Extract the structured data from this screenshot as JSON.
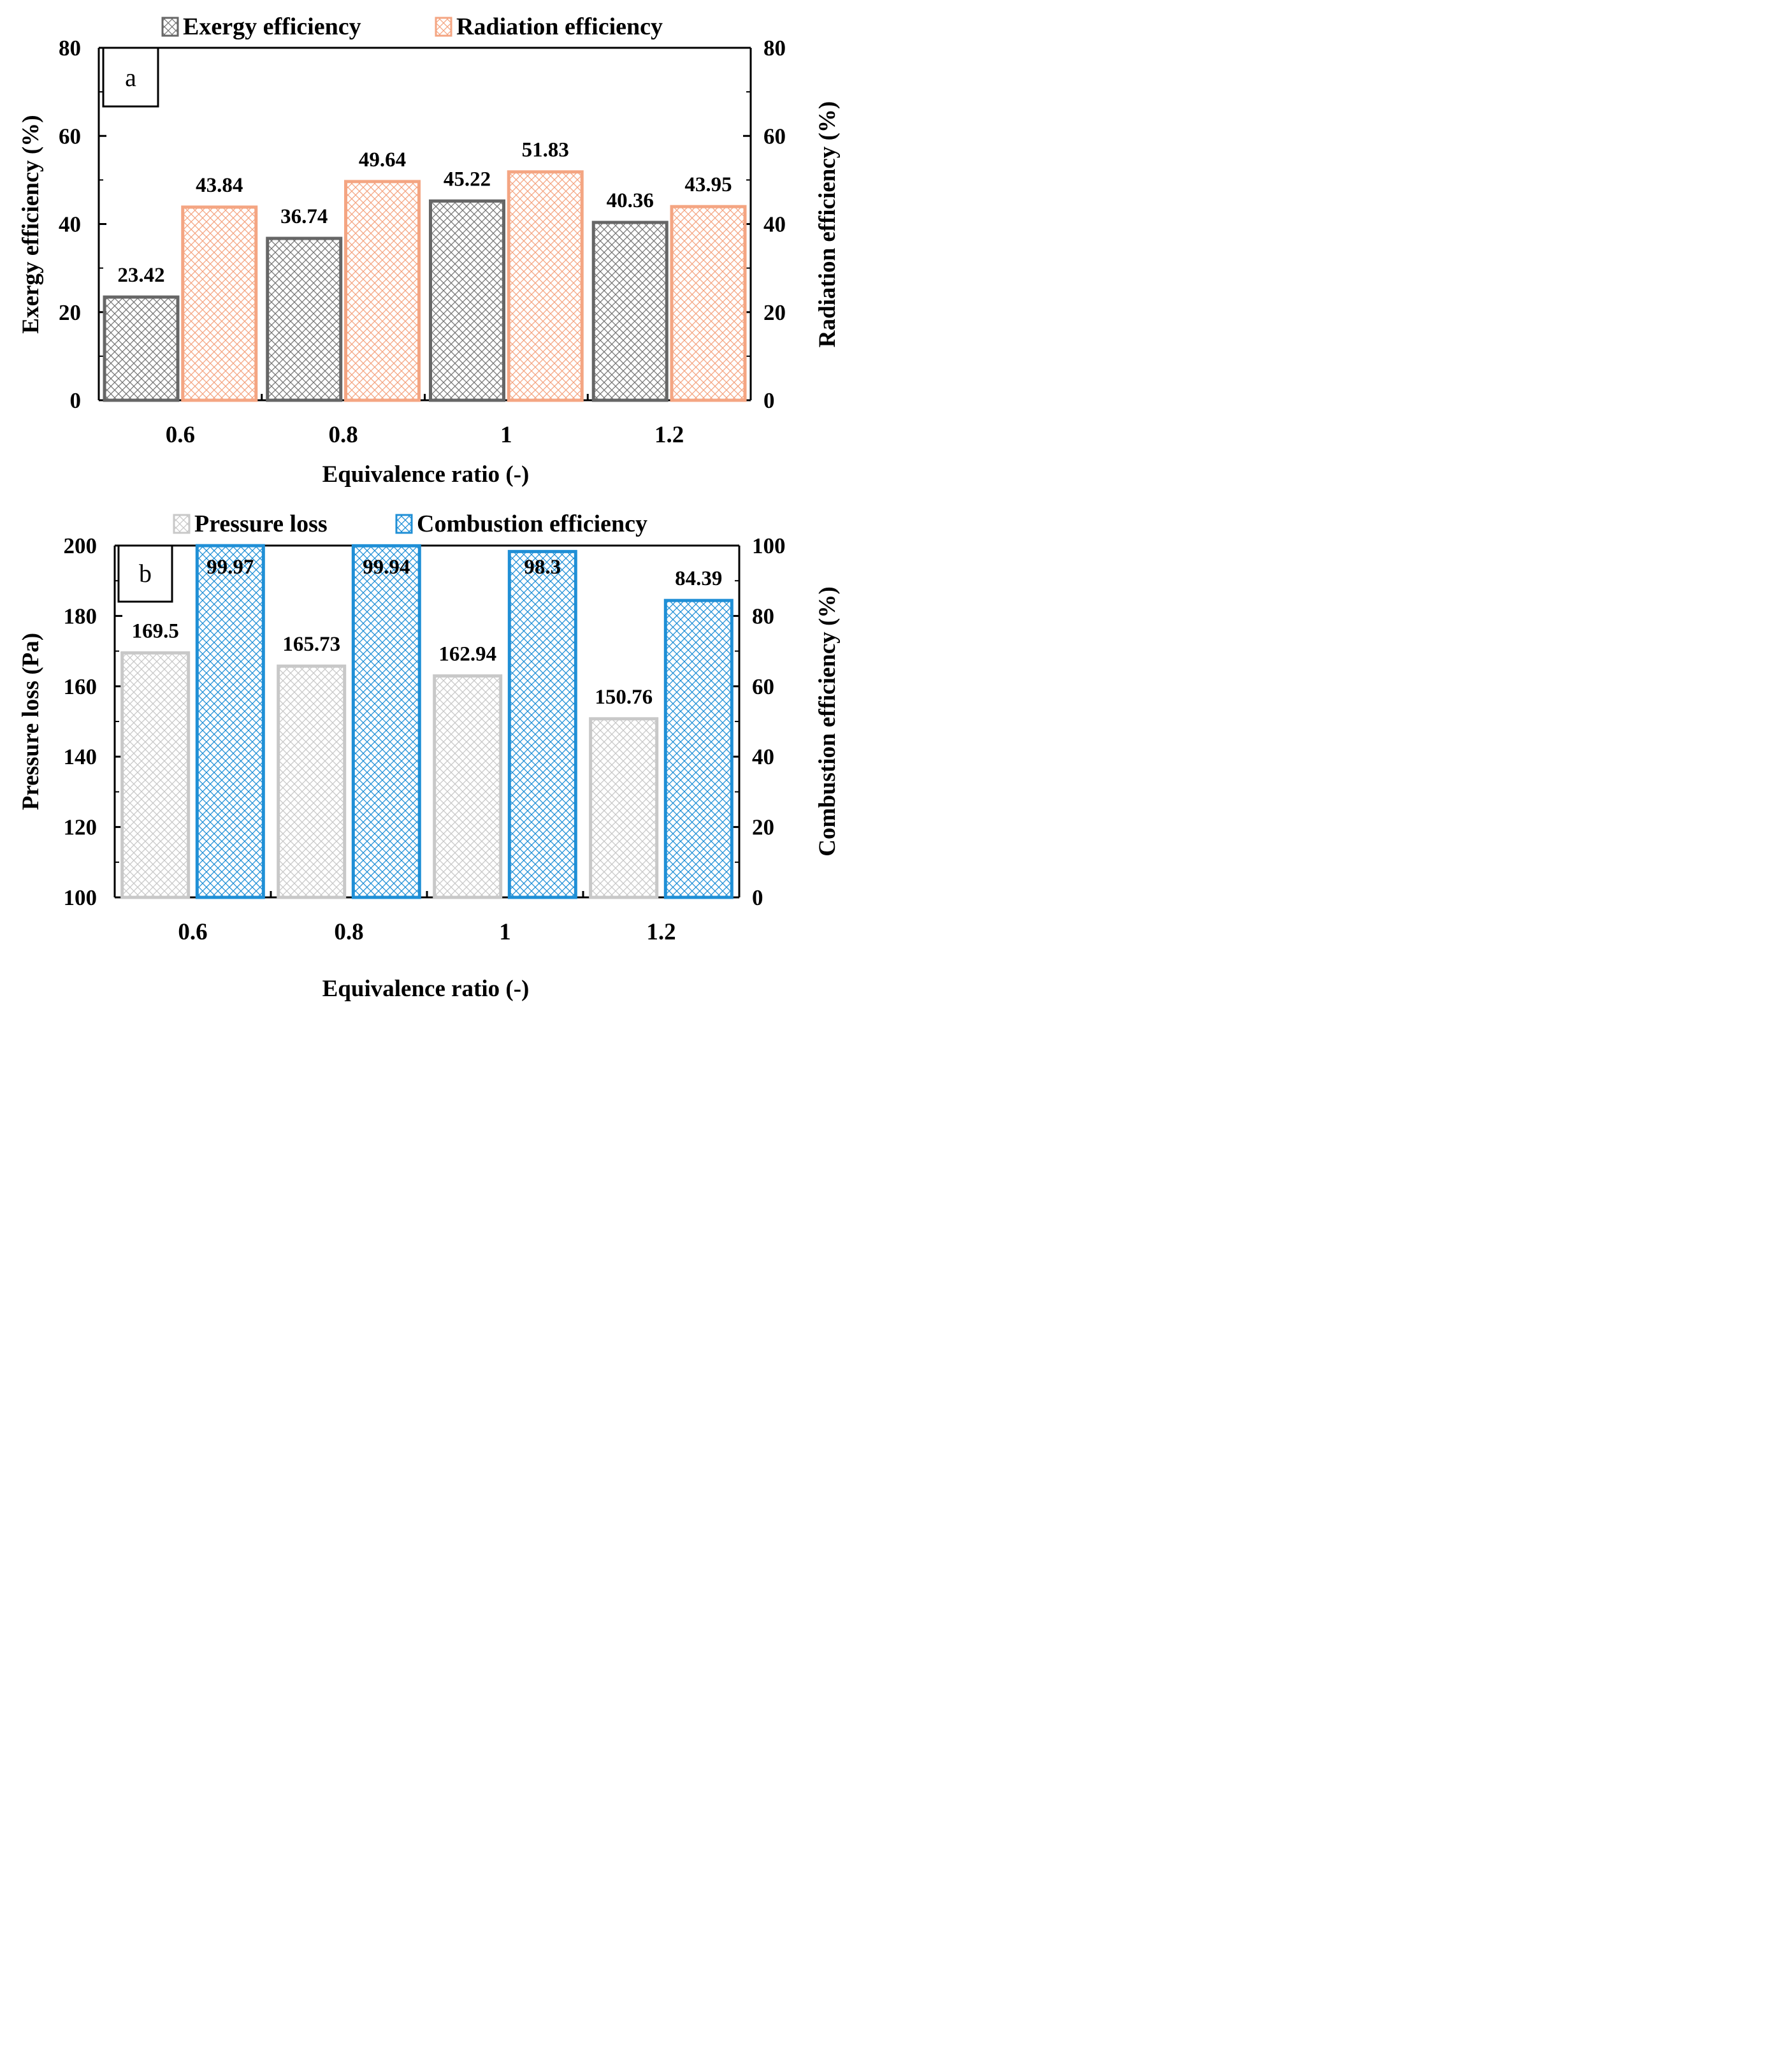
{
  "chart_data": [
    {
      "type": "bar",
      "panel": "a",
      "categories": [
        "0.6",
        "0.8",
        "1",
        "1.2"
      ],
      "series": [
        {
          "name": "Exergy efficiency",
          "values": [
            23.42,
            36.74,
            45.22,
            40.36
          ],
          "axis": "left",
          "color": "#666666",
          "labels": [
            "23.42",
            "36.74",
            "45.22",
            "40.36"
          ]
        },
        {
          "name": "Radiation efficiency",
          "values": [
            43.84,
            49.64,
            51.83,
            43.95
          ],
          "axis": "right",
          "color": "#f4a582",
          "labels": [
            "43.84",
            "49.64",
            "51.83",
            "43.95"
          ]
        }
      ],
      "xlabel": "Equivalence ratio (-)",
      "ylabel": "Exergy efficiency (%)",
      "y2label": "Radiation efficiency (%)",
      "ylim": [
        0,
        80
      ],
      "y2lim": [
        0,
        80
      ],
      "yticks": [
        "0",
        "20",
        "40",
        "60",
        "80"
      ],
      "y2ticks": [
        "0",
        "20",
        "40",
        "60",
        "80"
      ],
      "legend_position": "top"
    },
    {
      "type": "bar",
      "panel": "b",
      "categories": [
        "0.6",
        "0.8",
        "1",
        "1.2"
      ],
      "series": [
        {
          "name": "Pressure loss",
          "values": [
            169.5,
            165.73,
            162.94,
            150.76
          ],
          "axis": "left",
          "color": "#c8c8c8",
          "labels": [
            "169.5",
            "165.73",
            "162.94",
            "150.76"
          ]
        },
        {
          "name": "Combustion efficiency",
          "values": [
            99.97,
            99.94,
            98.3,
            84.39
          ],
          "axis": "right",
          "color": "#1f8fd6",
          "labels": [
            "99.97",
            "99.94",
            "98.3",
            "84.39"
          ]
        }
      ],
      "xlabel": "Equivalence ratio (-)",
      "ylabel": "Pressure loss (Pa)",
      "y2label": "Combustion efficiency (%)",
      "ylim": [
        100,
        200
      ],
      "y2lim": [
        0,
        100
      ],
      "yticks": [
        "100",
        "120",
        "140",
        "160",
        "180",
        "200"
      ],
      "y2ticks": [
        "0",
        "20",
        "40",
        "60",
        "80",
        "100"
      ],
      "legend_position": "top"
    }
  ]
}
